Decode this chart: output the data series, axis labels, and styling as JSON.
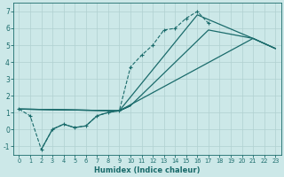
{
  "xlabel": "Humidex (Indice chaleur)",
  "bg_color": "#cce8e8",
  "line_color": "#1a6b6b",
  "grid_color": "#b0d0d0",
  "xlim": [
    -0.5,
    23.5
  ],
  "ylim": [
    -1.5,
    7.5
  ],
  "xticks": [
    0,
    1,
    2,
    3,
    4,
    5,
    6,
    7,
    8,
    9,
    10,
    11,
    12,
    13,
    14,
    15,
    16,
    17,
    18,
    19,
    20,
    21,
    22,
    23
  ],
  "yticks": [
    -1,
    0,
    1,
    2,
    3,
    4,
    5,
    6,
    7
  ],
  "line1_x": [
    0,
    1,
    2,
    3,
    4,
    5,
    6,
    7,
    8,
    9,
    10,
    11,
    12,
    13,
    14,
    15,
    16,
    17
  ],
  "line1_y": [
    1.2,
    0.8,
    -1.2,
    0.0,
    0.3,
    0.1,
    0.2,
    0.8,
    1.0,
    1.1,
    3.7,
    4.4,
    5.0,
    5.9,
    6.0,
    6.6,
    7.0,
    6.3
  ],
  "line2_x": [
    0,
    9,
    21,
    23
  ],
  "line2_y": [
    1.2,
    1.1,
    5.4,
    4.8
  ],
  "line3_x": [
    0,
    9,
    16,
    21,
    23
  ],
  "line3_y": [
    1.2,
    1.1,
    6.8,
    5.4,
    4.8
  ],
  "line4_x": [
    2,
    3,
    4,
    5,
    6,
    7,
    8,
    9,
    10,
    9
  ],
  "line4_y": [
    -1.2,
    0.0,
    0.3,
    0.1,
    0.2,
    0.8,
    1.0,
    1.1,
    1.4,
    1.1
  ],
  "line5_x": [
    0,
    9,
    10,
    17,
    21,
    23
  ],
  "line5_y": [
    1.2,
    1.1,
    1.4,
    5.9,
    5.4,
    4.8
  ]
}
